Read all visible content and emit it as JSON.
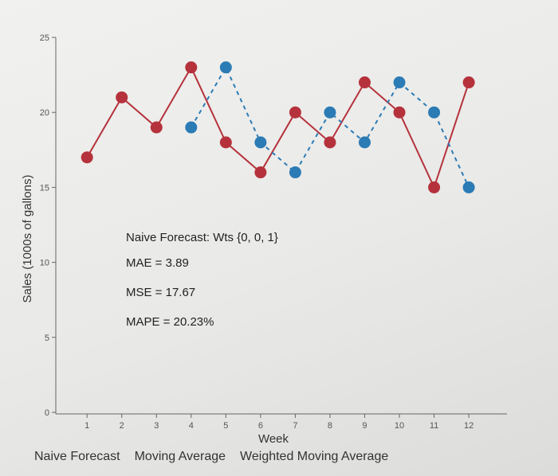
{
  "chart_data": {
    "type": "line",
    "xlabel": "Week",
    "ylabel": "Sales (1000s of gallons)",
    "xlim": [
      0.1,
      13.1
    ],
    "ylim": [
      0,
      25
    ],
    "x_ticks": [
      1,
      2,
      3,
      4,
      5,
      6,
      7,
      8,
      9,
      10,
      11,
      12
    ],
    "y_ticks": [
      0,
      5,
      10,
      15,
      20,
      25
    ],
    "series": [
      {
        "color": "#b5323c",
        "line_style": "solid",
        "x": [
          1,
          2,
          3,
          4,
          5,
          6,
          7,
          8,
          9,
          10,
          11,
          12
        ],
        "values": [
          17,
          21,
          19,
          23,
          18,
          16,
          20,
          18,
          22,
          20,
          15,
          22
        ]
      },
      {
        "color": "#2b7bb5",
        "line_style": "dashed",
        "x": [
          4,
          5,
          6,
          7,
          8,
          9,
          10,
          11,
          12
        ],
        "values": [
          19,
          23,
          18,
          16,
          20,
          18,
          22,
          20,
          15
        ]
      }
    ],
    "annotations": [
      "Naive Forecast: Wts {0, 0, 1}",
      "MAE = 3.89",
      "MSE = 17.67",
      "MAPE = 20.23%"
    ]
  },
  "tabs": [
    {
      "label": "Naive Forecast",
      "active": false
    },
    {
      "label": "Moving Average",
      "active": false
    },
    {
      "label": "Weighted Moving Average",
      "active": false
    }
  ]
}
